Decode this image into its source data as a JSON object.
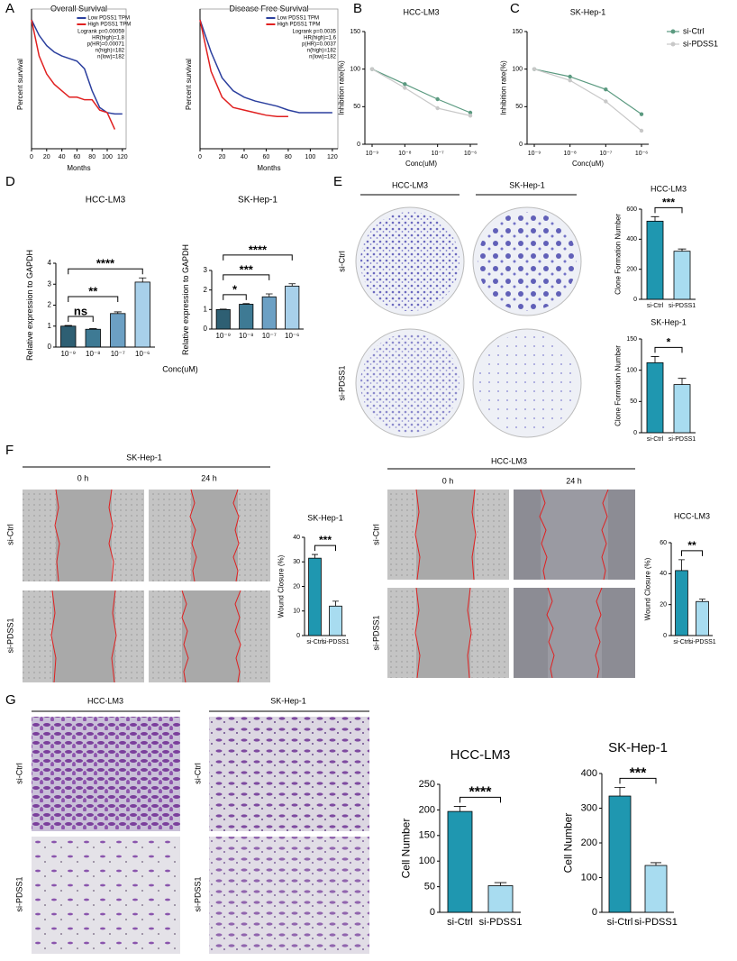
{
  "panels": {
    "letters": [
      "A",
      "B",
      "C",
      "D",
      "E",
      "F",
      "G"
    ],
    "E": {
      "columns": [
        "HCC-LM3",
        "SK-Hep-1"
      ],
      "rows": [
        "si-Ctrl",
        "si-PDSS1"
      ]
    },
    "F_left": {
      "title": "SK-Hep-1",
      "columns": [
        "0 h",
        "24 h"
      ],
      "rows": [
        "si-Ctrl",
        "si-PDSS1"
      ]
    },
    "F_right": {
      "title": "HCC-LM3",
      "columns": [
        "0 h",
        "24 h"
      ],
      "rows": [
        "si-Ctrl",
        "si-PDSS1"
      ]
    },
    "G": {
      "columns": [
        "HCC-LM3",
        "SK-Hep-1"
      ],
      "rows": [
        "si-Ctrl",
        "si-PDSS1"
      ]
    }
  },
  "chart_data": [
    {
      "type": "line",
      "title": "Overall Survival",
      "x_label": "Months",
      "y_label": "Percent survival",
      "x": [
        0,
        10,
        20,
        30,
        40,
        50,
        60,
        70,
        80,
        90,
        100,
        110,
        120
      ],
      "xlim": [
        0,
        125
      ],
      "xticks": [
        0,
        20,
        40,
        60,
        80,
        100,
        120
      ],
      "ylim": [
        0,
        1
      ],
      "series": [
        {
          "name": "Low PDSS1 TPM",
          "color": "#2b3f9e",
          "values": [
            1,
            0.88,
            0.8,
            0.75,
            0.72,
            0.7,
            0.68,
            0.62,
            0.45,
            0.32,
            0.28,
            0.27,
            0.27
          ]
        },
        {
          "name": "High PDSS1 TPM",
          "color": "#e02020",
          "values": [
            1,
            0.72,
            0.58,
            0.5,
            0.45,
            0.4,
            0.4,
            0.38,
            0.38,
            0.3,
            0.28,
            0.15,
            null
          ]
        }
      ],
      "annotations": [
        "Logrank p=0.00059",
        "HR(high)=1.8",
        "p(HR)=0.00071",
        "n(high)=182",
        "n(low)=182"
      ],
      "legend": "upper right",
      "frame": true,
      "markers": false
    },
    {
      "type": "line",
      "title": "Disease Free Survival",
      "x_label": "Months",
      "y_label": "Percent survival",
      "x": [
        0,
        10,
        20,
        30,
        40,
        50,
        60,
        70,
        80,
        90,
        100,
        110,
        120
      ],
      "xlim": [
        0,
        125
      ],
      "xticks": [
        0,
        20,
        40,
        60,
        80,
        100,
        120
      ],
      "ylim": [
        0,
        1
      ],
      "series": [
        {
          "name": "Low PDSS1 TPM",
          "color": "#2b3f9e",
          "values": [
            1,
            0.75,
            0.55,
            0.45,
            0.4,
            0.37,
            0.35,
            0.33,
            0.3,
            0.28,
            0.28,
            0.28,
            0.28
          ]
        },
        {
          "name": "High PDSS1 TPM",
          "color": "#e02020",
          "values": [
            1,
            0.6,
            0.4,
            0.32,
            0.3,
            0.28,
            0.26,
            0.25,
            0.25,
            null,
            null,
            null,
            null
          ]
        }
      ],
      "annotations": [
        "Logrank p=0.0035",
        "HR(high)=1.6",
        "p(HR)=0.0037",
        "n(high)=182",
        "n(low)=182"
      ],
      "legend": "upper right",
      "frame": true,
      "markers": false
    },
    {
      "type": "line",
      "title": "HCC-LM3",
      "x_label": "Conc(uM)",
      "y_label": "Inhibition rate(%)",
      "categories": [
        "10⁻⁹",
        "10⁻⁸",
        "10⁻⁷",
        "10⁻⁶"
      ],
      "ylim": [
        0,
        150
      ],
      "yticks": [
        0,
        50,
        100,
        150
      ],
      "series": [
        {
          "name": "si-Ctrl",
          "color": "#5b9a80",
          "values": [
            100,
            80,
            60,
            42
          ]
        },
        {
          "name": "si-PDSS1",
          "color": "#c8c8c8",
          "values": [
            100,
            75,
            48,
            38
          ]
        }
      ],
      "markers": true
    },
    {
      "type": "line",
      "title": "SK-Hep-1",
      "x_label": "Conc(uM)",
      "y_label": "Inhibition rate(%)",
      "categories": [
        "10⁻⁹",
        "10⁻⁸",
        "10⁻⁷",
        "10⁻⁶"
      ],
      "ylim": [
        0,
        150
      ],
      "yticks": [
        0,
        50,
        100,
        150
      ],
      "series": [
        {
          "name": "si-Ctrl",
          "color": "#5b9a80",
          "values": [
            100,
            90,
            73,
            40
          ]
        },
        {
          "name": "si-PDSS1",
          "color": "#c8c8c8",
          "values": [
            100,
            85,
            57,
            18
          ]
        }
      ],
      "markers": true,
      "legend": "outside right"
    },
    {
      "type": "bar",
      "title": "HCC-LM3",
      "x_label": "Conc(uM)",
      "y_label": "Relative expression to GAPDH",
      "categories": [
        "10⁻⁹",
        "10⁻⁸",
        "10⁻⁷",
        "10⁻⁶"
      ],
      "values": [
        1.0,
        0.85,
        1.6,
        3.1
      ],
      "errors": [
        0.03,
        0.03,
        0.08,
        0.2
      ],
      "colors": [
        "#2e5f73",
        "#3e7a94",
        "#6ca0c4",
        "#a8d0ea"
      ],
      "ylim": [
        0,
        4
      ],
      "yticks": [
        0,
        1,
        2,
        3,
        4
      ],
      "comparisons": [
        {
          "pair": [
            0,
            1
          ],
          "label": "ns"
        },
        {
          "pair": [
            0,
            2
          ],
          "label": "**"
        },
        {
          "pair": [
            0,
            3
          ],
          "label": "****"
        }
      ]
    },
    {
      "type": "bar",
      "title": "SK-Hep-1",
      "y_label": "Relative expression to GAPDH",
      "categories": [
        "10⁻⁹",
        "10⁻⁸",
        "10⁻⁷",
        "10⁻⁶"
      ],
      "values": [
        1.0,
        1.27,
        1.65,
        2.2
      ],
      "errors": [
        0.02,
        0.03,
        0.15,
        0.12
      ],
      "colors": [
        "#2e5f73",
        "#3e7a94",
        "#6ca0c4",
        "#a8d0ea"
      ],
      "ylim": [
        0,
        3
      ],
      "yticks": [
        0,
        1,
        2,
        3
      ],
      "comparisons": [
        {
          "pair": [
            0,
            1
          ],
          "label": "*"
        },
        {
          "pair": [
            0,
            2
          ],
          "label": "***"
        },
        {
          "pair": [
            0,
            3
          ],
          "label": "****"
        }
      ]
    },
    {
      "type": "bar",
      "title": "HCC-LM3",
      "y_label": "Clone Formation Number",
      "categories": [
        "si-Ctrl",
        "si-PDSS1"
      ],
      "values": [
        520,
        320
      ],
      "errors": [
        30,
        15
      ],
      "colors": [
        "#1f97b0",
        "#a8dcf0"
      ],
      "ylim": [
        0,
        600
      ],
      "yticks": [
        0,
        200,
        400,
        600
      ],
      "comparisons": [
        {
          "pair": [
            0,
            1
          ],
          "label": "***"
        }
      ]
    },
    {
      "type": "bar",
      "title": "SK-Hep-1",
      "y_label": "Clone Formation Number",
      "categories": [
        "si-Ctrl",
        "si-PDSS1"
      ],
      "values": [
        112,
        77
      ],
      "errors": [
        10,
        10
      ],
      "colors": [
        "#1f97b0",
        "#a8dcf0"
      ],
      "ylim": [
        0,
        150
      ],
      "yticks": [
        0,
        50,
        100,
        150
      ],
      "comparisons": [
        {
          "pair": [
            0,
            1
          ],
          "label": "*"
        }
      ]
    },
    {
      "type": "bar",
      "title": "SK-Hep-1",
      "y_label": "Wound Closure (%)",
      "categories": [
        "si-Ctrl",
        "si-PDSS1"
      ],
      "values": [
        31.5,
        12
      ],
      "errors": [
        1.5,
        2
      ],
      "colors": [
        "#1f97b0",
        "#a8dcf0"
      ],
      "ylim": [
        0,
        40
      ],
      "yticks": [
        0,
        10,
        20,
        30,
        40
      ],
      "comparisons": [
        {
          "pair": [
            0,
            1
          ],
          "label": "***"
        }
      ]
    },
    {
      "type": "bar",
      "title": "HCC-LM3",
      "y_label": "Wound Closure (%)",
      "categories": [
        "si-Ctrl",
        "si-PDSS1"
      ],
      "values": [
        42,
        22
      ],
      "errors": [
        7,
        1.5
      ],
      "colors": [
        "#1f97b0",
        "#a8dcf0"
      ],
      "ylim": [
        0,
        60
      ],
      "yticks": [
        0,
        20,
        40,
        60
      ],
      "comparisons": [
        {
          "pair": [
            0,
            1
          ],
          "label": "**"
        }
      ]
    },
    {
      "type": "bar",
      "title": "HCC-LM3",
      "y_label": "Cell Number",
      "categories": [
        "si-Ctrl",
        "si-PDSS1"
      ],
      "values": [
        197,
        52
      ],
      "errors": [
        10,
        6
      ],
      "colors": [
        "#1f97b0",
        "#a8dcf0"
      ],
      "ylim": [
        0,
        250
      ],
      "yticks": [
        0,
        50,
        100,
        150,
        200,
        250
      ],
      "comparisons": [
        {
          "pair": [
            0,
            1
          ],
          "label": "****"
        }
      ]
    },
    {
      "type": "bar",
      "title": "SK-Hep-1",
      "y_label": "Cell Number",
      "categories": [
        "si-Ctrl",
        "si-PDSS1"
      ],
      "values": [
        335,
        135
      ],
      "errors": [
        25,
        8
      ],
      "colors": [
        "#1f97b0",
        "#a8dcf0"
      ],
      "ylim": [
        0,
        400
      ],
      "yticks": [
        0,
        100,
        200,
        300,
        400
      ],
      "comparisons": [
        {
          "pair": [
            0,
            1
          ],
          "label": "***"
        }
      ]
    }
  ]
}
